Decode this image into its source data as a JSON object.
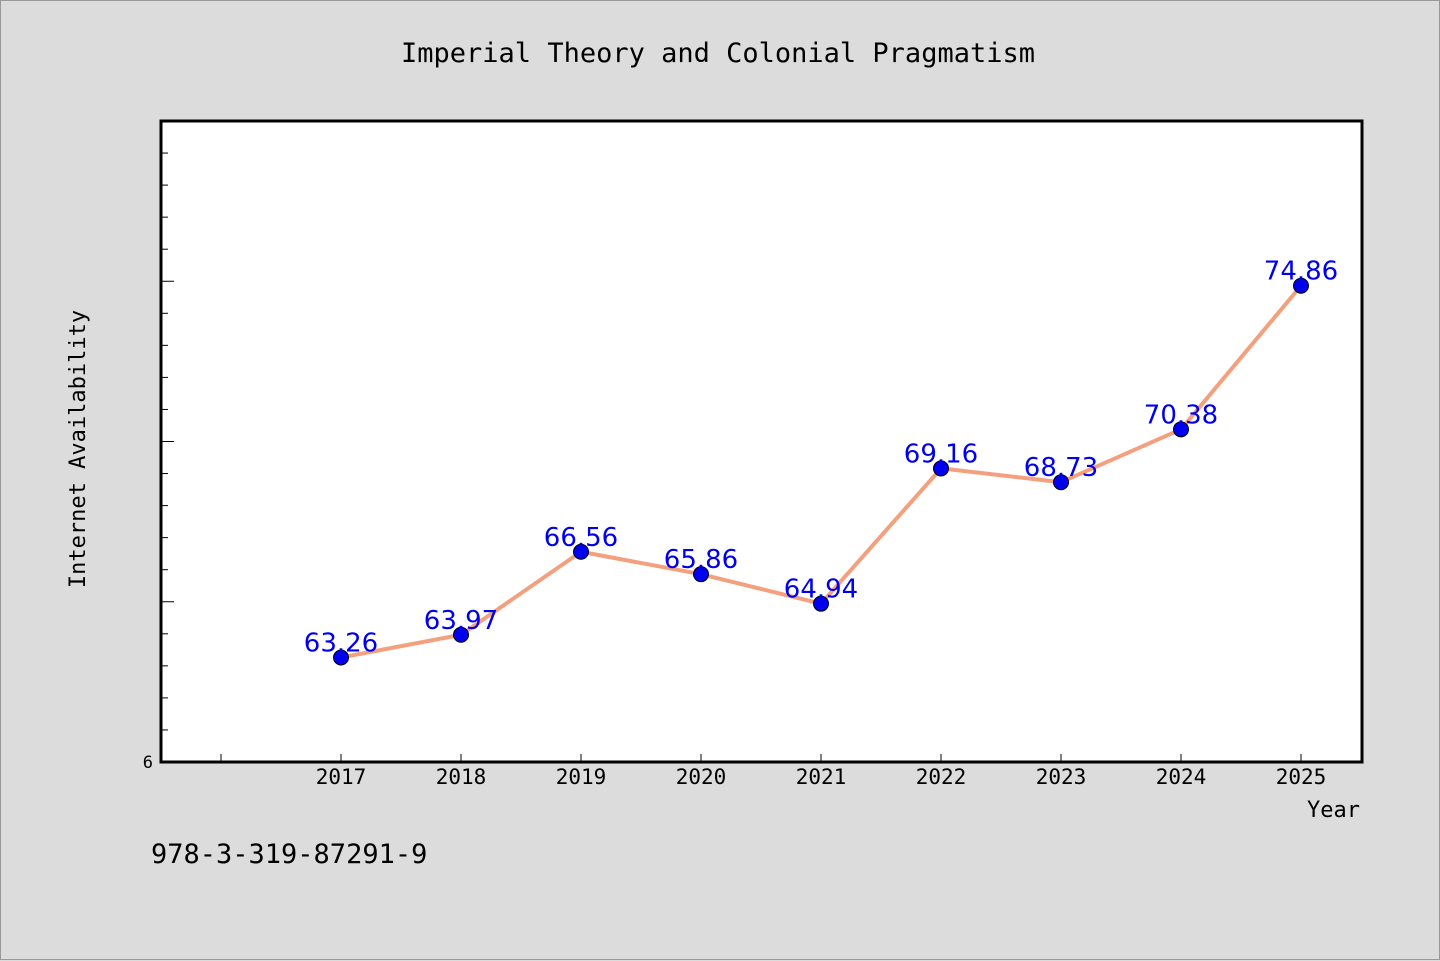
{
  "chart_data": {
    "type": "line",
    "title": "Imperial Theory and Colonial Pragmatism",
    "xlabel": "Year",
    "ylabel": "Internet Availability",
    "categories": [
      "2017",
      "2018",
      "2019",
      "2020",
      "2021",
      "2022",
      "2023",
      "2024",
      "2025"
    ],
    "series": [
      {
        "values": [
          63.26,
          63.97,
          66.56,
          65.86,
          64.94,
          69.16,
          68.73,
          70.38,
          74.86
        ],
        "labels": [
          "63.26",
          "63.97",
          "66.56",
          "65.86",
          "64.94",
          "69.16",
          "68.73",
          "70.38",
          "74.86"
        ]
      }
    ],
    "ylim": [
      60,
      80
    ],
    "y_tick_labels": [
      "6"
    ],
    "grid": false,
    "line_color": "#f4a07e",
    "marker_color": "#0000ee",
    "label_color": "#0000ee"
  },
  "footer": {
    "isbn": "978-3-319-87291-9"
  }
}
